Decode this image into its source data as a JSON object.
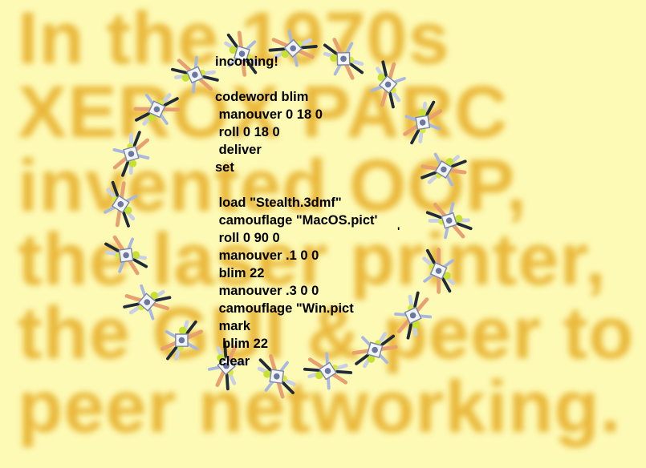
{
  "background_text": "In the 1970s XEROX PARC invented OOP, the laser printer, the GUI & peer to peer networking.",
  "code_lines": [
    "incoming!",
    "",
    "codeword blim",
    " manouver 0 18 0",
    " roll 0 18 0",
    " deliver",
    "set",
    "",
    " load \"Stealth.3dmf\"",
    " camouflage \"MacOS.pict'",
    " roll 0 90 0",
    " manouver .1 0 0",
    " blim 22",
    " manouver .3 0 0",
    " camouflage \"Win.pict",
    " mark",
    "  blim 22",
    " clear"
  ],
  "stray_mark": "'",
  "colors": {
    "background": "#fdfab5",
    "blur_text": "#e9b534",
    "code_text": "#000000"
  },
  "ship_icon": "stealth-ship-icon"
}
